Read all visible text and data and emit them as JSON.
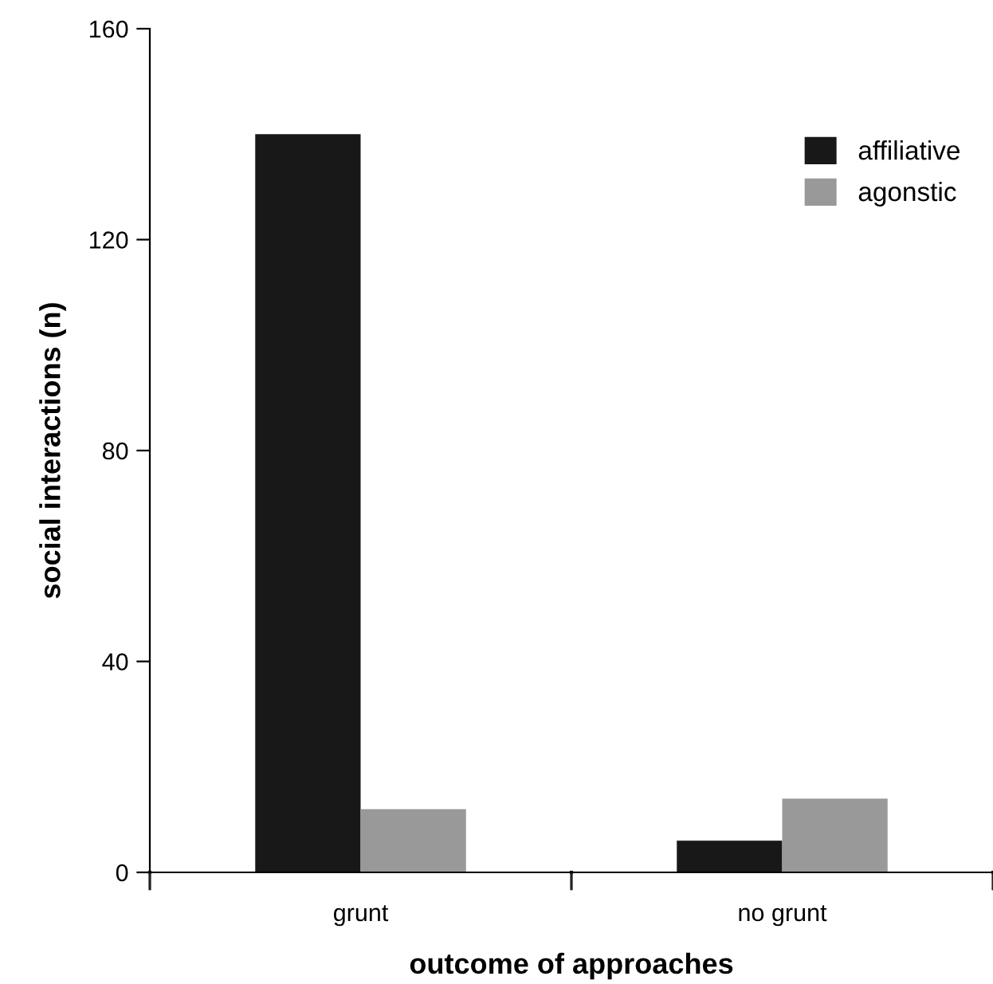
{
  "chart_data": {
    "type": "bar",
    "xlabel": "outcome of approaches",
    "ylabel": "social interactions (n)",
    "categories": [
      "grunt",
      "no grunt"
    ],
    "series": [
      {
        "name": "affiliative",
        "color": "#181818",
        "values": [
          140,
          6
        ]
      },
      {
        "name": "agonstic",
        "color": "#999999",
        "values": [
          12,
          14
        ]
      }
    ],
    "ylim": [
      0,
      160
    ],
    "yticks": [
      0,
      40,
      80,
      120,
      160
    ],
    "grid": false,
    "legend": "top right"
  }
}
